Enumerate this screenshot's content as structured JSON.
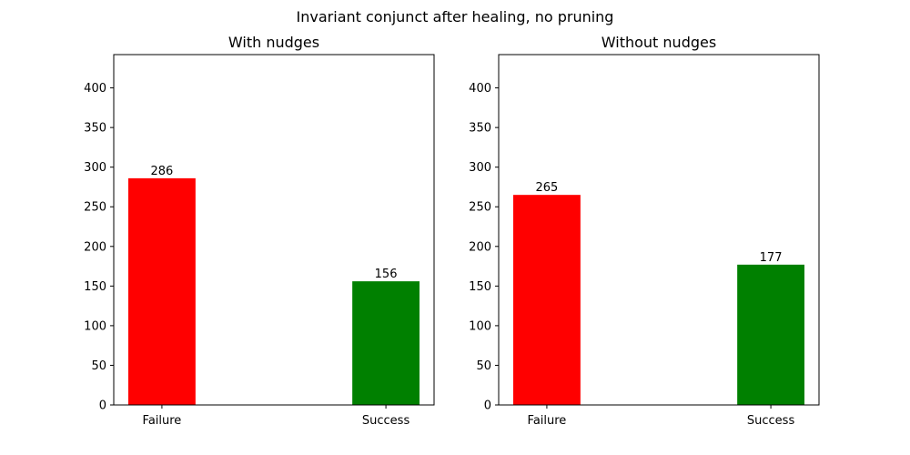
{
  "figure": {
    "suptitle": "Invariant conjunct after healing, no pruning"
  },
  "chart_data": [
    {
      "type": "bar",
      "title": "With nudges",
      "xlabel": "",
      "ylabel": "",
      "categories": [
        "Failure",
        "Success"
      ],
      "values": [
        286,
        156
      ],
      "colors": [
        "#ff0000",
        "#008000"
      ],
      "ylim": [
        0,
        442
      ],
      "yticks": [
        0,
        50,
        100,
        150,
        200,
        250,
        300,
        350,
        400
      ],
      "data_labels": [
        "286",
        "156"
      ],
      "grid": false,
      "legend": "none"
    },
    {
      "type": "bar",
      "title": "Without nudges",
      "xlabel": "",
      "ylabel": "",
      "categories": [
        "Failure",
        "Success"
      ],
      "values": [
        265,
        177
      ],
      "colors": [
        "#ff0000",
        "#008000"
      ],
      "ylim": [
        0,
        442
      ],
      "yticks": [
        0,
        50,
        100,
        150,
        200,
        250,
        300,
        350,
        400
      ],
      "data_labels": [
        "265",
        "177"
      ],
      "grid": false,
      "legend": "none"
    }
  ]
}
